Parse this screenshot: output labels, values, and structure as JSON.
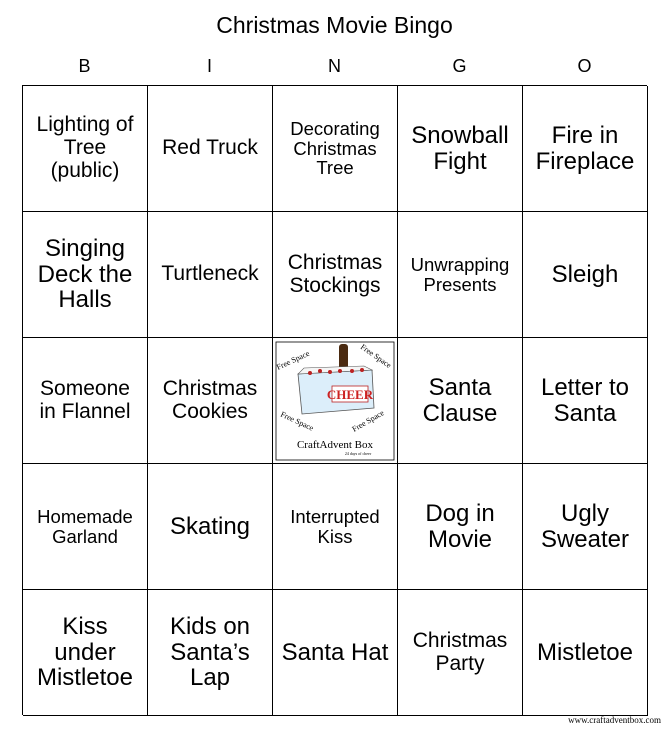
{
  "title": "Christmas Movie Bingo",
  "letters": [
    "B",
    "I",
    "N",
    "G",
    "O"
  ],
  "cells": [
    "Lighting of\nTree\n(public)",
    "Red Truck",
    "Decorating\nChristmas\nTree",
    "Snowball\nFight",
    "Fire in\nFireplace",
    "Singing\nDeck the\nHalls",
    "Turtleneck",
    "Christmas\nStockings",
    "Unwrapping\nPresents",
    "Sleigh",
    "Someone\nin Flannel",
    "Christmas\nCookies",
    "",
    "Santa\nClause",
    "Letter to\nSanta",
    "Homemade\nGarland",
    "Skating",
    "Interrupted\nKiss",
    "Dog in\nMovie",
    "Ugly\nSweater",
    "Kiss\nunder\nMistletoe",
    "Kids on\nSanta’s\nLap",
    "Santa Hat",
    "Christmas\nParty",
    "Mistletoe"
  ],
  "free_space": {
    "label": "Free Space",
    "sign": "CHEER",
    "brand": "CraftAdvent Box",
    "tagline": "24 days of cheer",
    "icon": "cheer-box-logo"
  },
  "footer_url": "www.craftadventbox.com"
}
